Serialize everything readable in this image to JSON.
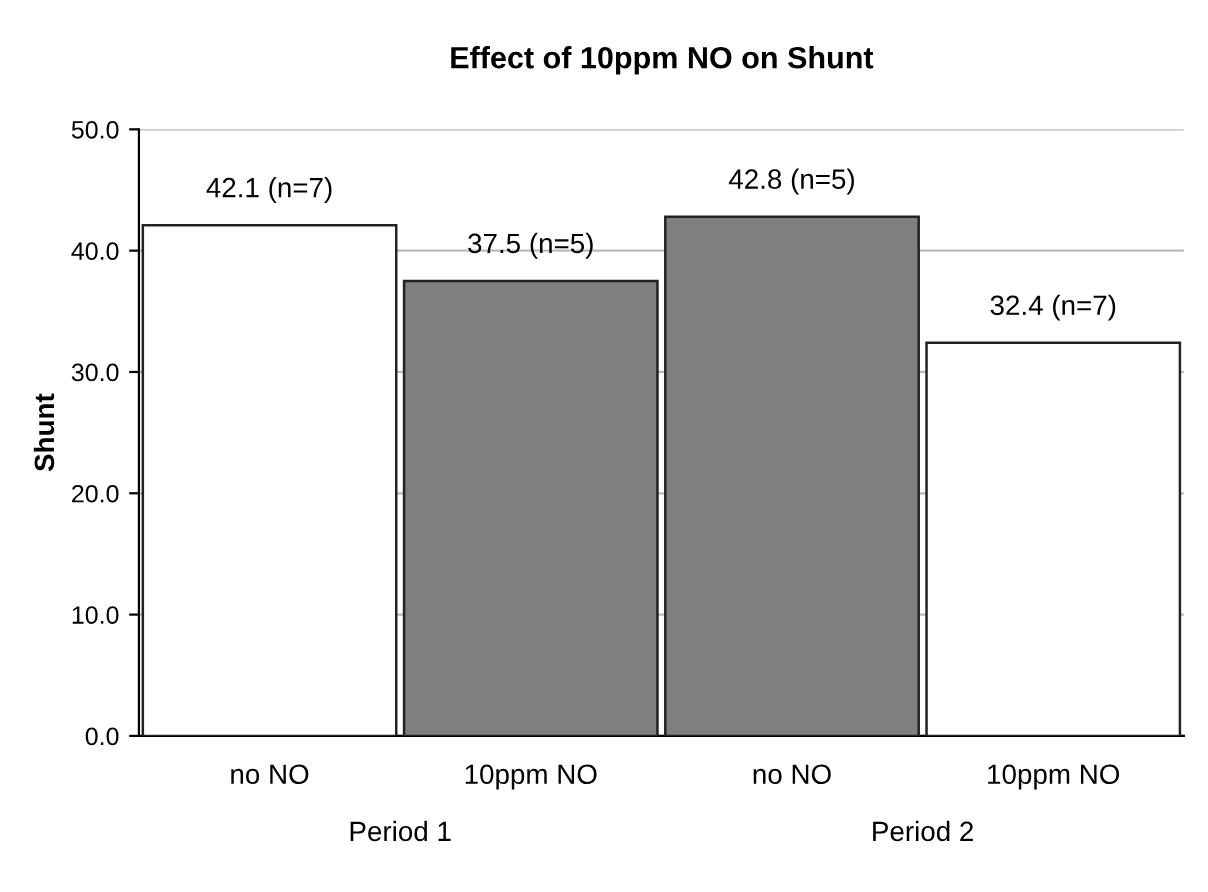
{
  "chart_data": {
    "type": "bar",
    "title": "Effect of 10ppm NO on Shunt",
    "ylabel": "Shunt",
    "categories": [
      "no NO",
      "10ppm NO",
      "no NO",
      "10ppm NO"
    ],
    "values": [
      42.1,
      37.5,
      42.8,
      32.4
    ],
    "colors": [
      "#ffffff",
      "#7f7f7f",
      "#7f7f7f",
      "#ffffff"
    ],
    "value_labels": [
      "42.1 (n=7)",
      "37.5 (n=5)",
      "42.8 (n=5)",
      "32.4 (n=7)"
    ],
    "annotations": [
      "Period 1",
      "Period 2"
    ],
    "ylim": [
      0,
      50
    ],
    "yticks": [
      {
        "value": 0,
        "label": "0.0"
      },
      {
        "value": 10,
        "label": "10.0"
      },
      {
        "value": 20,
        "label": "20.0"
      },
      {
        "value": 30,
        "label": "30.0"
      },
      {
        "value": 40,
        "label": "40.0"
      },
      {
        "value": 50,
        "label": "50.0"
      }
    ],
    "grid": "y",
    "legend": false
  }
}
